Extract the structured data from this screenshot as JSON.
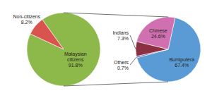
{
  "chart_data": [
    {
      "type": "pie",
      "categories": [
        "Malaysian citizens",
        "Non-citizens"
      ],
      "values": [
        91.8,
        8.2
      ],
      "value_labels": [
        "91.8%",
        "8.2%"
      ],
      "colors": [
        "#8db84a",
        "#d9534f"
      ],
      "data_labels": true
    },
    {
      "type": "pie",
      "categories": [
        "Bumiputera",
        "Chinese",
        "Indians",
        "Others"
      ],
      "values": [
        67.4,
        24.6,
        7.3,
        0.7
      ],
      "value_labels": [
        "67.4%",
        "24.6%",
        "7.3%",
        "0.7%"
      ],
      "colors": [
        "#5b9bd5",
        "#d070b0",
        "#8b3040",
        "#7060a0"
      ],
      "data_labels": true
    }
  ]
}
